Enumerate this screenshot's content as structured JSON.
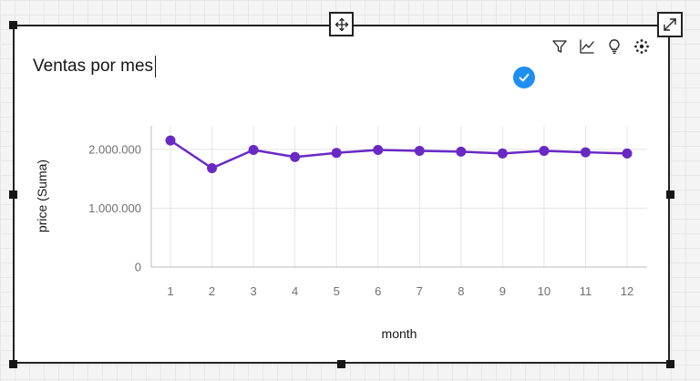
{
  "widget": {
    "title": "Ventas por mes",
    "toolbar": [
      {
        "icon": "filter-icon",
        "label": "Filter"
      },
      {
        "icon": "line-chart-icon",
        "label": "Chart type"
      },
      {
        "icon": "lightbulb-icon",
        "label": "Insights"
      },
      {
        "icon": "settings-dots-icon",
        "label": "Settings"
      }
    ],
    "move_icon": "move-arrows-icon",
    "expand_icon": "expand-icon",
    "status_icon": "checkmark-icon",
    "colors": {
      "series": "#6929c4",
      "badge": "#1f8ef1",
      "border": "#222222"
    }
  },
  "chart_data": {
    "type": "line",
    "title": "Ventas por mes",
    "xlabel": "month",
    "ylabel": "price (Suma)",
    "x": [
      "1",
      "2",
      "3",
      "4",
      "5",
      "6",
      "7",
      "8",
      "9",
      "10",
      "11",
      "12"
    ],
    "series": [
      {
        "values": [
          2150000,
          1680000,
          1990000,
          1870000,
          1940000,
          1990000,
          1975000,
          1960000,
          1930000,
          1975000,
          1950000,
          1930000
        ]
      }
    ],
    "ylim": [
      0,
      2400000
    ],
    "yticks": [
      0,
      1000000,
      2000000
    ],
    "ytick_labels": [
      "0",
      "1.000.000",
      "2.000.000"
    ],
    "grid": true,
    "legend": "none"
  }
}
